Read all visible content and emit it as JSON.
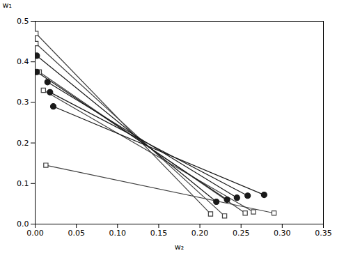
{
  "chart_data": {
    "type": "line",
    "xlabel": "w₂",
    "ylabel": "w₁",
    "xlim": [
      0.0,
      0.35
    ],
    "ylim": [
      0.0,
      0.5
    ],
    "xticks": [
      {
        "value": 0.0,
        "label": "0.00"
      },
      0.05,
      {
        "value": 0.1,
        "label": "0.10"
      },
      0.15,
      {
        "value": 0.2,
        "label": "0.20"
      },
      0.25,
      {
        "value": 0.3,
        "label": "0.30"
      },
      0.35
    ],
    "yticks": [
      {
        "value": 0.0,
        "label": "0.0"
      },
      0.1,
      0.2,
      0.3,
      0.4,
      0.5
    ],
    "grid": false,
    "series": [
      {
        "marker": "square",
        "color": "#404040",
        "x": [
          0.001,
          0.213
        ],
        "values": [
          0.47,
          0.025
        ]
      },
      {
        "marker": "square",
        "color": "#404040",
        "x": [
          0.001,
          0.23
        ],
        "values": [
          0.445,
          0.02
        ]
      },
      {
        "marker": "square",
        "color": "#404040",
        "x": [
          0.005,
          0.255
        ],
        "values": [
          0.375,
          0.027
        ]
      },
      {
        "marker": "square",
        "color": "#404040",
        "x": [
          0.01,
          0.265
        ],
        "values": [
          0.33,
          0.03
        ]
      },
      {
        "marker": "square",
        "color": "#404040",
        "x": [
          0.013,
          0.29
        ],
        "values": [
          0.145,
          0.027
        ]
      },
      {
        "marker": "circle",
        "color": "#1a1a1a",
        "x": [
          0.002,
          0.22
        ],
        "values": [
          0.415,
          0.055
        ]
      },
      {
        "marker": "circle",
        "color": "#1a1a1a",
        "x": [
          0.002,
          0.233
        ],
        "values": [
          0.375,
          0.06
        ]
      },
      {
        "marker": "circle",
        "color": "#1a1a1a",
        "x": [
          0.015,
          0.245
        ],
        "values": [
          0.35,
          0.065
        ]
      },
      {
        "marker": "circle",
        "color": "#1a1a1a",
        "x": [
          0.018,
          0.258
        ],
        "values": [
          0.325,
          0.07
        ]
      },
      {
        "marker": "circle",
        "color": "#1a1a1a",
        "x": [
          0.022,
          0.278
        ],
        "values": [
          0.29,
          0.072
        ]
      }
    ]
  }
}
